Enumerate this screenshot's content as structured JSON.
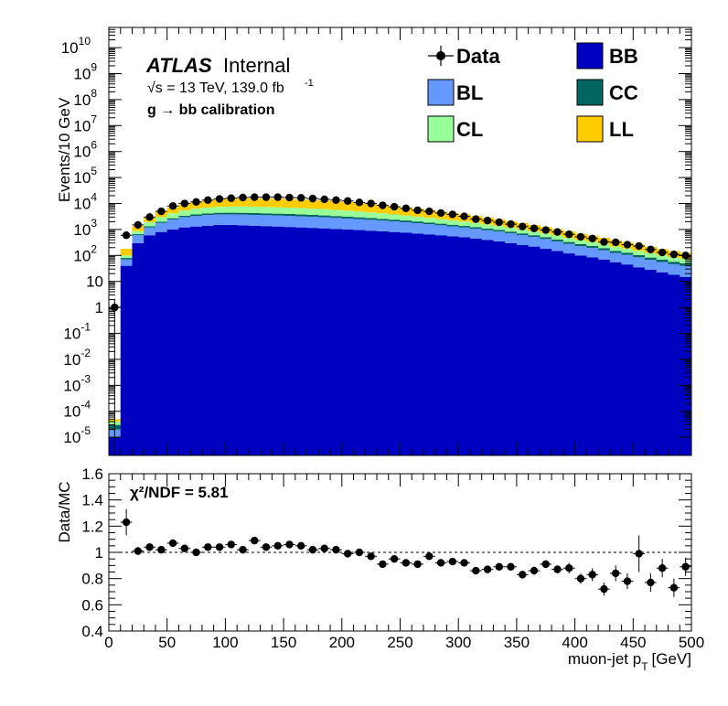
{
  "annotations": {
    "atlas": "ATLAS",
    "internal": "Internal",
    "energy_lumi": "√s = 13 TeV, 139.0 fb",
    "lumi_exp": "-1",
    "selection": "g → bb calibration",
    "chi2": "χ²/NDF = 5.81"
  },
  "colors": {
    "BB": "#0000c0",
    "BL": "#6699ff",
    "CC": "#00665e",
    "CL": "#99ff99",
    "LL": "#ffcc00"
  },
  "legend": [
    "Data",
    "BB",
    "BL",
    "CC",
    "CL",
    "LL"
  ],
  "chart_data": [
    {
      "type": "bar",
      "stacked": true,
      "ylabel": "Events/10 GeV",
      "yscale": "log",
      "ylim": [
        2e-06,
        60000000000.0
      ],
      "xlim": [
        0,
        500
      ],
      "bin_width": 10,
      "x": [
        5,
        15,
        25,
        35,
        45,
        55,
        65,
        75,
        85,
        95,
        105,
        115,
        125,
        135,
        145,
        155,
        165,
        175,
        185,
        195,
        205,
        215,
        225,
        235,
        245,
        255,
        265,
        275,
        285,
        295,
        305,
        315,
        325,
        335,
        345,
        355,
        365,
        375,
        385,
        395,
        405,
        415,
        425,
        435,
        445,
        455,
        465,
        475,
        485,
        495
      ],
      "series": [
        {
          "name": "BB",
          "values": [
            1e-05,
            40,
            300,
            600,
            800,
            1000,
            1200,
            1300,
            1400,
            1500,
            1500,
            1450,
            1400,
            1350,
            1300,
            1250,
            1200,
            1150,
            1100,
            1050,
            1000,
            950,
            900,
            850,
            800,
            750,
            700,
            650,
            600,
            550,
            500,
            450,
            400,
            350,
            300,
            250,
            220,
            180,
            150,
            120,
            100,
            85,
            70,
            55,
            45,
            35,
            28,
            22,
            18,
            15
          ]
        },
        {
          "name": "BL",
          "values": [
            1e-05,
            30,
            300,
            600,
            1000,
            1400,
            1800,
            2000,
            2200,
            2300,
            2300,
            2300,
            2250,
            2200,
            2150,
            2100,
            2000,
            1950,
            1850,
            1750,
            1650,
            1550,
            1450,
            1350,
            1250,
            1150,
            1050,
            950,
            850,
            770,
            690,
            610,
            540,
            480,
            420,
            360,
            300,
            250,
            200,
            160,
            130,
            110,
            90,
            70,
            60,
            50,
            40,
            34,
            28,
            25
          ]
        },
        {
          "name": "CC",
          "values": [
            1e-05,
            10,
            60,
            120,
            200,
            300,
            400,
            500,
            550,
            600,
            620,
            640,
            640,
            630,
            620,
            600,
            580,
            550,
            520,
            490,
            460,
            430,
            400,
            370,
            340,
            310,
            280,
            250,
            225,
            200,
            180,
            160,
            140,
            125,
            110,
            95,
            82,
            70,
            60,
            50,
            42,
            36,
            30,
            25,
            21,
            18,
            15,
            13,
            11,
            10
          ]
        },
        {
          "name": "CL",
          "values": [
            1e-05,
            20,
            200,
            600,
            1000,
            1500,
            2000,
            2500,
            2800,
            3000,
            3200,
            3300,
            3300,
            3200,
            3100,
            3000,
            2900,
            2700,
            2600,
            2400,
            2200,
            2000,
            1800,
            1600,
            1400,
            1250,
            1100,
            950,
            850,
            750,
            650,
            560,
            480,
            410,
            350,
            300,
            250,
            210,
            175,
            145,
            120,
            100,
            85,
            70,
            58,
            48,
            40,
            33,
            28,
            24
          ]
        },
        {
          "name": "LL",
          "values": [
            1e-05,
            80,
            500,
            1000,
            2000,
            3000,
            4000,
            5000,
            6000,
            7000,
            7500,
            8000,
            8200,
            8200,
            8000,
            7800,
            7500,
            7200,
            6800,
            6400,
            6000,
            5500,
            5000,
            4500,
            4000,
            3600,
            3200,
            2800,
            2400,
            2100,
            1800,
            1500,
            1300,
            1100,
            900,
            760,
            640,
            530,
            440,
            360,
            300,
            250,
            200,
            165,
            135,
            110,
            90,
            75,
            62,
            52
          ]
        }
      ],
      "data": {
        "name": "Data",
        "values": [
          1,
          600,
          1500,
          3000,
          5000,
          8000,
          10000,
          11500,
          13500,
          15000,
          16000,
          17000,
          17500,
          17500,
          17500,
          17000,
          16500,
          15500,
          14500,
          13500,
          12500,
          11000,
          10000,
          8500,
          7500,
          6500,
          5500,
          5000,
          4300,
          3800,
          3200,
          2500,
          2200,
          1900,
          1600,
          1300,
          1100,
          950,
          800,
          650,
          520,
          450,
          330,
          320,
          260,
          230,
          170,
          130,
          110,
          100
        ],
        "y_err_rel": [
          1,
          0.04,
          0.025,
          0.018,
          0.014,
          0.011,
          0.01,
          0.01,
          0.009,
          0.008,
          0.008,
          0.008,
          0.008,
          0.008,
          0.008,
          0.008,
          0.008,
          0.008,
          0.009,
          0.009,
          0.009,
          0.01,
          0.01,
          0.011,
          0.012,
          0.013,
          0.014,
          0.015,
          0.016,
          0.017,
          0.018,
          0.02,
          0.022,
          0.024,
          0.026,
          0.028,
          0.031,
          0.033,
          0.036,
          0.04,
          0.045,
          0.048,
          0.055,
          0.057,
          0.062,
          0.066,
          0.077,
          0.088,
          0.095,
          0.1
        ]
      }
    },
    {
      "type": "scatter",
      "ylabel": "Data/MC",
      "xlabel": "muon-jet p",
      "xlabel_sub": "T",
      "xlabel_unit": "[GeV]",
      "ylim": [
        0.4,
        1.6
      ],
      "xlim": [
        0,
        500
      ],
      "yticks": [
        "0.4",
        "0.6",
        "0.8",
        "1",
        "1.2",
        "1.4",
        "1.6"
      ],
      "xticks": [
        "0",
        "50",
        "100",
        "150",
        "200",
        "250",
        "300",
        "350",
        "400",
        "450",
        "500"
      ],
      "reference_line": 1,
      "x": [
        15,
        25,
        35,
        45,
        55,
        65,
        75,
        85,
        95,
        105,
        115,
        125,
        135,
        145,
        155,
        165,
        175,
        185,
        195,
        205,
        215,
        225,
        235,
        245,
        255,
        265,
        275,
        285,
        295,
        305,
        315,
        325,
        335,
        345,
        355,
        365,
        375,
        385,
        395,
        405,
        415,
        425,
        435,
        445,
        455,
        465,
        475,
        485,
        495
      ],
      "y": [
        1.23,
        1.01,
        1.04,
        1.02,
        1.07,
        1.03,
        1.0,
        1.04,
        1.04,
        1.06,
        1.02,
        1.09,
        1.04,
        1.05,
        1.06,
        1.05,
        1.02,
        1.03,
        1.02,
        0.99,
        1.0,
        0.97,
        0.91,
        0.95,
        0.92,
        0.91,
        0.97,
        0.92,
        0.93,
        0.92,
        0.86,
        0.87,
        0.89,
        0.89,
        0.83,
        0.86,
        0.91,
        0.87,
        0.88,
        0.8,
        0.83,
        0.72,
        0.84,
        0.78,
        0.99,
        0.77,
        0.88,
        0.73,
        0.89
      ],
      "y_err": [
        0.1,
        0.03,
        0.03,
        0.02,
        0.02,
        0.02,
        0.02,
        0.02,
        0.02,
        0.02,
        0.02,
        0.02,
        0.02,
        0.02,
        0.02,
        0.02,
        0.02,
        0.02,
        0.02,
        0.02,
        0.02,
        0.02,
        0.02,
        0.02,
        0.02,
        0.02,
        0.02,
        0.02,
        0.02,
        0.02,
        0.02,
        0.02,
        0.02,
        0.03,
        0.03,
        0.03,
        0.03,
        0.03,
        0.04,
        0.04,
        0.05,
        0.05,
        0.06,
        0.06,
        0.14,
        0.07,
        0.07,
        0.07,
        0.07
      ]
    }
  ]
}
